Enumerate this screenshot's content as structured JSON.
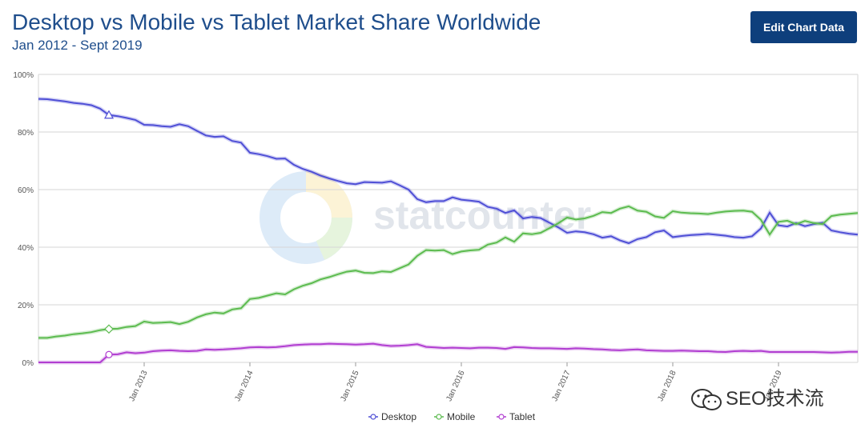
{
  "header": {
    "edit_button_label": "Edit Chart Data"
  },
  "watermark": "SEO技术流",
  "colors": {
    "desktop": "#4f4fd6",
    "mobile": "#5cbb4f",
    "tablet": "#b13ed1",
    "title": "#1f4e8c",
    "button": "#0e3f7c"
  },
  "chart_data": {
    "type": "line",
    "title": "Desktop vs Mobile vs Tablet Market Share Worldwide",
    "subtitle": "Jan 2012 - Sept 2019",
    "xlabel": "",
    "ylabel": "",
    "ylim": [
      0,
      100
    ],
    "y_ticks": [
      0,
      20,
      40,
      60,
      80,
      100
    ],
    "y_tick_labels": [
      "0%",
      "20%",
      "40%",
      "60%",
      "80%",
      "100%"
    ],
    "x_range": [
      "2012-01",
      "2019-09"
    ],
    "x_tick_labels": [
      "Jan 2013",
      "Jan 2014",
      "Jan 2015",
      "Jan 2016",
      "Jan 2017",
      "Jan 2018",
      "Jan 2019"
    ],
    "grid": true,
    "legend_position": "bottom-center",
    "series": [
      {
        "name": "Desktop",
        "color": "#4f4fd6",
        "values": [
          91.5,
          91.4,
          91.0,
          90.6,
          90.1,
          89.8,
          89.3,
          88.1,
          85.9,
          85.5,
          84.9,
          84.2,
          82.5,
          82.4,
          82.0,
          81.8,
          82.7,
          82.0,
          80.4,
          78.8,
          78.3,
          78.5,
          76.9,
          76.3,
          72.8,
          72.3,
          71.6,
          70.7,
          70.8,
          68.6,
          67.2,
          66.2,
          64.9,
          63.9,
          63.0,
          62.2,
          61.9,
          62.6,
          62.5,
          62.4,
          62.9,
          61.5,
          60.0,
          56.7,
          55.6,
          56.0,
          56.0,
          57.3,
          56.5,
          56.2,
          55.8,
          54.0,
          53.4,
          51.9,
          52.8,
          50.0,
          50.5,
          50.1,
          48.5,
          46.9,
          45.0,
          45.5,
          45.2,
          44.5,
          43.3,
          43.8,
          42.4,
          41.4,
          42.8,
          43.5,
          45.2,
          45.8,
          43.5,
          43.9,
          44.2,
          44.4,
          44.6,
          44.3,
          44.0,
          43.5,
          43.3,
          43.8,
          46.5,
          52.0,
          47.6,
          47.2,
          48.4,
          47.3,
          48.0,
          48.5,
          45.8,
          45.2,
          44.7,
          44.4
        ]
      },
      {
        "name": "Mobile",
        "color": "#5cbb4f",
        "values": [
          8.5,
          8.5,
          9.0,
          9.3,
          9.8,
          10.1,
          10.5,
          11.2,
          11.6,
          11.7,
          12.3,
          12.6,
          14.2,
          13.7,
          13.8,
          14.0,
          13.3,
          14.1,
          15.6,
          16.7,
          17.3,
          17.0,
          18.4,
          18.8,
          22.0,
          22.4,
          23.2,
          24.0,
          23.6,
          25.4,
          26.6,
          27.5,
          28.8,
          29.6,
          30.6,
          31.5,
          31.9,
          31.1,
          31.0,
          31.6,
          31.4,
          32.7,
          34.0,
          37.0,
          39.0,
          38.8,
          39.0,
          37.6,
          38.5,
          38.9,
          39.1,
          40.9,
          41.6,
          43.4,
          41.9,
          44.8,
          44.5,
          45.0,
          46.6,
          48.3,
          50.3,
          49.6,
          50.0,
          50.9,
          52.2,
          51.9,
          53.4,
          54.2,
          52.7,
          52.3,
          50.7,
          50.2,
          52.5,
          52.0,
          51.8,
          51.7,
          51.5,
          52.0,
          52.4,
          52.6,
          52.7,
          52.3,
          49.5,
          44.4,
          48.8,
          49.2,
          48.0,
          49.1,
          48.4,
          48.0,
          50.8,
          51.3,
          51.6,
          51.9
        ]
      },
      {
        "name": "Tablet",
        "color": "#b13ed1",
        "values": [
          0.0,
          0.0,
          0.0,
          0.0,
          0.0,
          0.0,
          0.0,
          0.0,
          2.7,
          2.8,
          3.5,
          3.2,
          3.4,
          3.9,
          4.1,
          4.2,
          4.0,
          3.9,
          4.0,
          4.5,
          4.4,
          4.5,
          4.7,
          4.9,
          5.2,
          5.3,
          5.2,
          5.3,
          5.6,
          6.0,
          6.2,
          6.3,
          6.3,
          6.5,
          6.4,
          6.3,
          6.2,
          6.3,
          6.5,
          6.0,
          5.7,
          5.8,
          6.0,
          6.3,
          5.4,
          5.2,
          5.0,
          5.1,
          5.0,
          4.9,
          5.1,
          5.1,
          5.0,
          4.7,
          5.3,
          5.2,
          5.0,
          4.9,
          4.9,
          4.8,
          4.7,
          4.9,
          4.8,
          4.6,
          4.5,
          4.3,
          4.2,
          4.4,
          4.5,
          4.2,
          4.1,
          4.0,
          4.0,
          4.1,
          4.0,
          3.9,
          3.9,
          3.7,
          3.6,
          3.9,
          4.0,
          3.9,
          4.0,
          3.6,
          3.6,
          3.6,
          3.6,
          3.6,
          3.6,
          3.5,
          3.4,
          3.5,
          3.7,
          3.7
        ]
      }
    ]
  }
}
